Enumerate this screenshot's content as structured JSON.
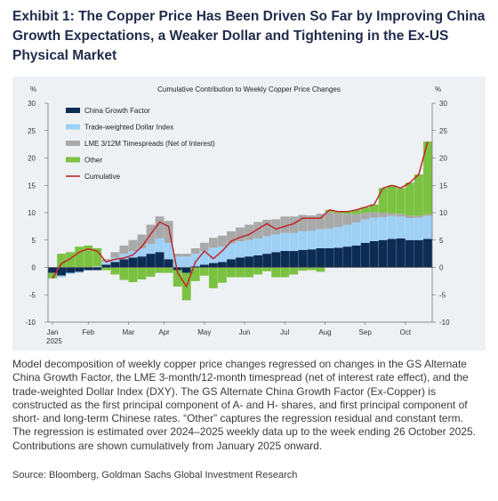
{
  "exhibit": {
    "title": "Exhibit 1: The Copper Price Has Been Driven So Far by Improving China Growth Expectations, a Weaker Dollar and Tightening in the Ex-US Physical Market"
  },
  "caption": "Model decomposition of weekly copper price changes regressed on changes in the GS Alternate China Growth Factor, the LME 3-month/12-month timespread (net of interest rate effect), and the trade-weighted Dollar Index (DXY). The GS Alternate China Growth Factor (Ex-Copper) is constructed as the first principal component of A- and H- shares, and first principal component of short- and long-term Chinese rates. “Other” captures the regression residual and constant term. The regression is estimated over 2024–2025 weekly data up to the week ending 26 October 2025. Contributions are shown cumulatively from January 2025 onward.",
  "source": "Source: Bloomberg, Goldman Sachs Global Investment Research",
  "colors": {
    "china": "#0d2c54",
    "dollar": "#9fd0f5",
    "lme": "#a9a9a9",
    "other": "#7cc242",
    "cumulative": "#c0262d"
  },
  "chart_data": {
    "type": "area",
    "title": "Cumulative Contribution to Weekly Copper Price Changes",
    "ylabel_left": "%",
    "ylabel_right": "%",
    "ylim": [
      -10,
      30
    ],
    "yticks": [
      -10,
      -5,
      0,
      5,
      10,
      15,
      20,
      25,
      30
    ],
    "x_tick_labels": [
      "Jan",
      "Feb",
      "Mar",
      "Apr",
      "May",
      "Jun",
      "Jul",
      "Aug",
      "Sep",
      "Oct"
    ],
    "x_tick_weeks": [
      0,
      4,
      8.5,
      12.5,
      17,
      21.5,
      26,
      30.5,
      35,
      39.5
    ],
    "x_year_label": "2025",
    "weeks": 43,
    "legend_position": "top-left",
    "series": [
      {
        "name": "China Growth Factor",
        "key": "china",
        "values": [
          -1.0,
          -1.5,
          -1.0,
          -0.8,
          -0.5,
          -0.5,
          0.5,
          1.0,
          1.5,
          1.8,
          2.0,
          2.5,
          2.8,
          1.5,
          -0.5,
          -1.0,
          0.2,
          0.5,
          0.8,
          1.0,
          1.5,
          1.8,
          2.0,
          2.2,
          2.5,
          2.8,
          3.0,
          3.0,
          3.2,
          3.3,
          3.5,
          3.5,
          3.6,
          3.8,
          4.0,
          4.5,
          4.8,
          5.0,
          5.2,
          5.3,
          5.0,
          5.0,
          5.2
        ]
      },
      {
        "name": "Trade-weighted Dollar Index",
        "key": "dollar",
        "values": [
          0.0,
          -0.3,
          -0.2,
          -0.2,
          -0.1,
          0.2,
          0.5,
          0.8,
          1.0,
          1.2,
          1.5,
          1.8,
          2.5,
          3.0,
          2.0,
          2.0,
          2.3,
          2.5,
          2.8,
          2.8,
          2.9,
          3.0,
          3.0,
          3.1,
          3.2,
          3.2,
          3.3,
          3.3,
          3.4,
          3.4,
          3.5,
          3.6,
          3.8,
          4.0,
          4.2,
          4.3,
          4.3,
          4.2,
          4.2,
          4.0,
          4.0,
          4.1,
          4.2
        ]
      },
      {
        "name": "LME 3/12M Timespreads (Net of Interest)",
        "key": "lme",
        "values": [
          0.0,
          0.0,
          0.0,
          0.0,
          0.0,
          0.0,
          0.5,
          1.0,
          1.5,
          2.0,
          2.5,
          3.5,
          4.0,
          4.0,
          0.5,
          0.5,
          1.0,
          1.5,
          1.8,
          2.0,
          2.2,
          2.5,
          2.8,
          3.0,
          3.0,
          2.8,
          3.0,
          3.0,
          3.0,
          2.8,
          2.8,
          3.0,
          2.5,
          2.0,
          1.5,
          1.2,
          1.0,
          0.8,
          0.5,
          0.5,
          0.5,
          0.3,
          0.3
        ]
      },
      {
        "name": "Other",
        "key": "other",
        "values": [
          -1.0,
          2.5,
          2.8,
          3.8,
          4.0,
          3.3,
          -0.5,
          -1.3,
          -2.3,
          -2.7,
          -2.2,
          -1.7,
          -1.0,
          -1.0,
          -3.0,
          -5.0,
          -2.5,
          -1.5,
          -3.8,
          -2.8,
          -1.8,
          -1.8,
          -1.8,
          -1.3,
          -0.7,
          -1.8,
          -1.8,
          -1.3,
          -0.6,
          -0.5,
          -0.8,
          0.4,
          0.3,
          0.4,
          0.8,
          1.0,
          1.4,
          4.5,
          5.1,
          4.7,
          6.0,
          7.6,
          13.3
        ]
      }
    ],
    "cumulative": {
      "name": "Cumulative",
      "values": [
        -2.0,
        0.7,
        1.6,
        2.8,
        3.4,
        3.0,
        1.0,
        1.5,
        1.7,
        2.3,
        3.8,
        6.1,
        8.3,
        7.5,
        -1.0,
        -3.5,
        1.0,
        3.0,
        1.6,
        3.0,
        4.8,
        5.5,
        6.0,
        7.0,
        8.0,
        7.0,
        7.5,
        8.0,
        9.0,
        9.0,
        9.0,
        10.5,
        10.2,
        10.2,
        10.5,
        11.0,
        11.5,
        14.5,
        15.0,
        14.5,
        15.5,
        17.0,
        23.0
      ]
    }
  }
}
